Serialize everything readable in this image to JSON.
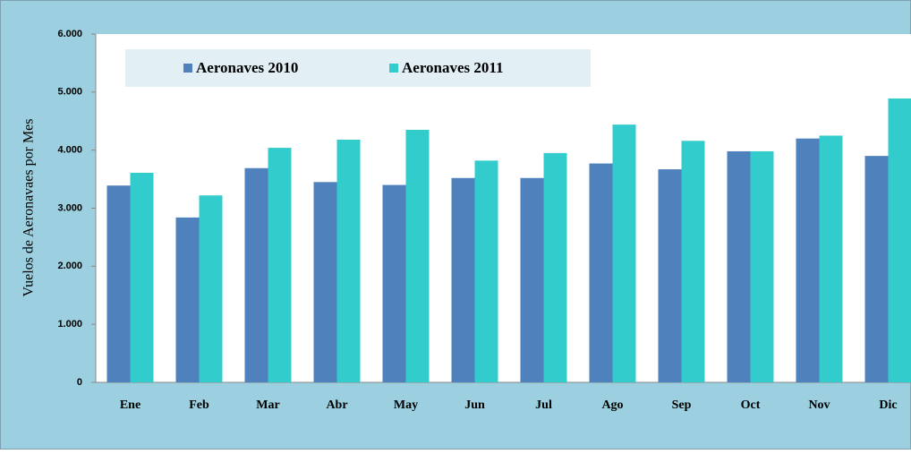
{
  "chart_data": {
    "type": "bar",
    "ylabel": "Vuelos de Aeronavaes por Mes",
    "categories": [
      "Ene",
      "Feb",
      "Mar",
      "Abr",
      "May",
      "Jun",
      "Jul",
      "Ago",
      "Sep",
      "Oct",
      "Nov",
      "Dic"
    ],
    "series": [
      {
        "name": "Aeronaves 2010",
        "color": "#4f81bd",
        "values": [
          3390,
          2840,
          3690,
          3450,
          3400,
          3520,
          3520,
          3770,
          3670,
          3980,
          4200,
          3900
        ]
      },
      {
        "name": "Aeronaves 2011",
        "color": "#33cccc",
        "values": [
          3610,
          3220,
          4040,
          4180,
          4350,
          3820,
          3950,
          4440,
          4160,
          3980,
          4250,
          4890
        ]
      }
    ],
    "ylim": [
      0,
      6000
    ],
    "yticks": [
      0,
      {
        "value": 1000,
        "label": "1.000"
      },
      {
        "value": 2000,
        "label": "2.000"
      },
      {
        "value": 3000,
        "label": "3.000"
      },
      {
        "value": 4000,
        "label": "4.000"
      },
      {
        "value": 5000,
        "label": "5.000"
      },
      {
        "value": 6000,
        "label": "6.000"
      }
    ],
    "legend": "top-left"
  }
}
